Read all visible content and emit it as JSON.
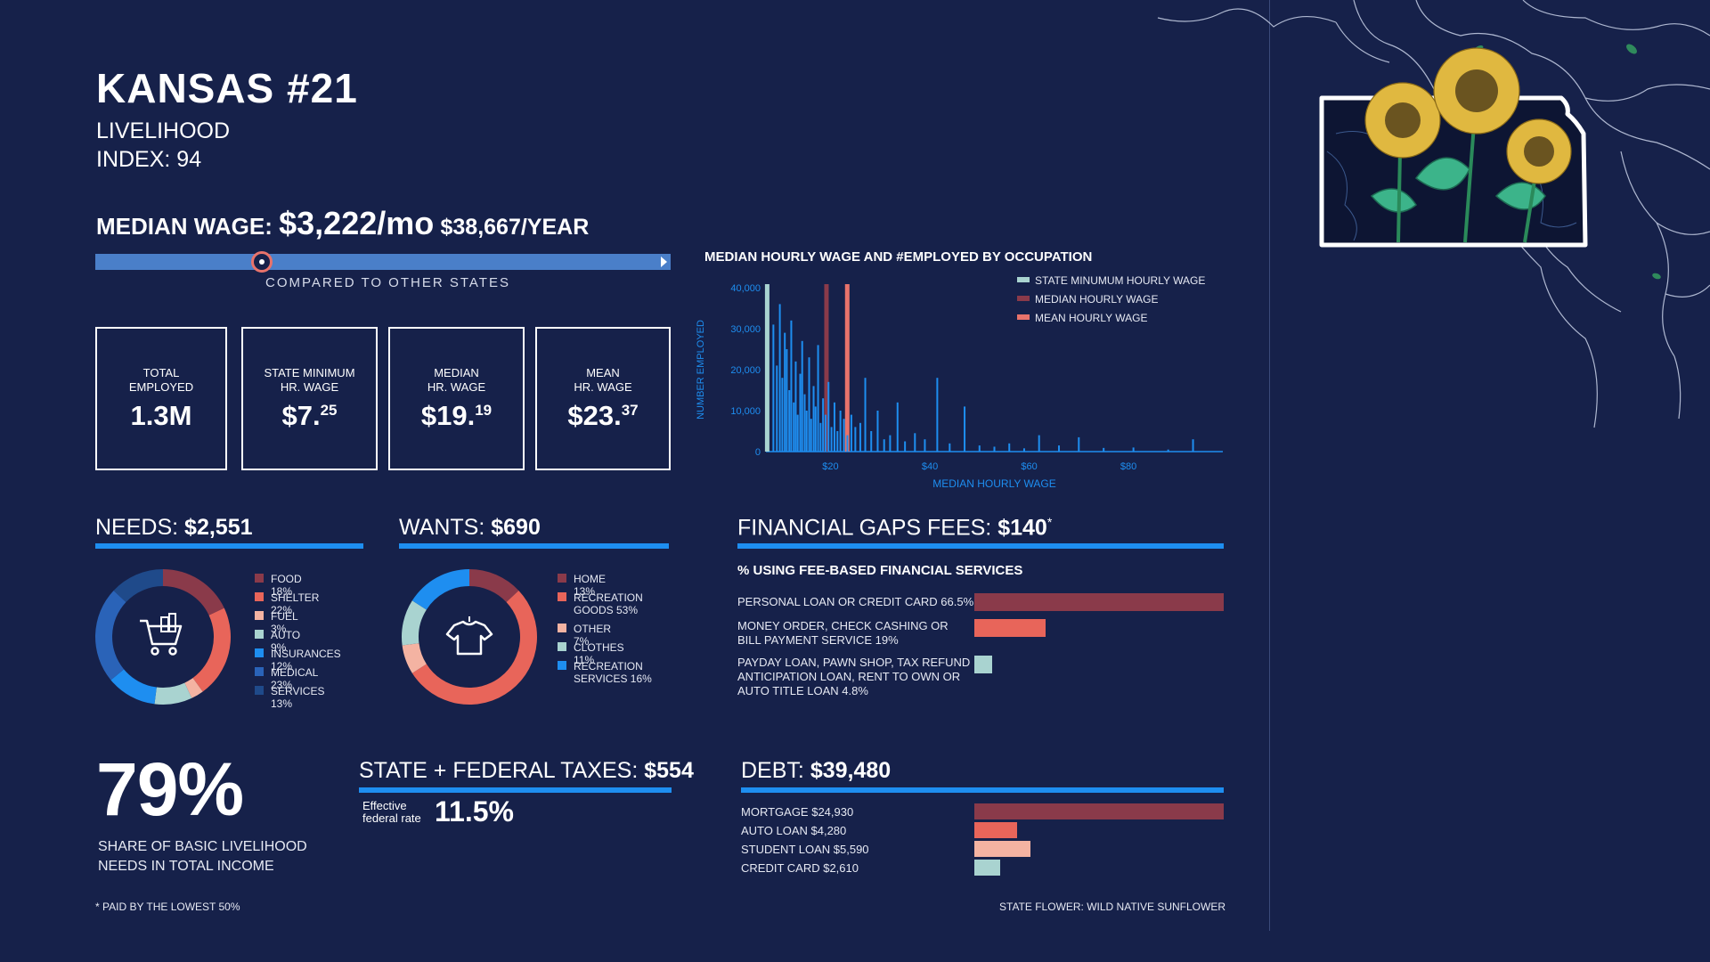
{
  "header": {
    "title": "KANSAS #21",
    "subtitle1": "LIVELIHOOD",
    "subtitle2": "INDEX: 94"
  },
  "median_wage": {
    "label": "MEDIAN WAGE:",
    "monthly": "$3,222/mo",
    "yearly": "$38,667/YEAR",
    "compare_label": "COMPARED TO OTHER STATES",
    "rank_position": 0.29
  },
  "stats": [
    {
      "label": "TOTAL\nEMPLOYED",
      "value": "1.3M",
      "sup": ""
    },
    {
      "label": "STATE MINIMUM\nHR. WAGE",
      "value": "$7.",
      "sup": "25"
    },
    {
      "label": "MEDIAN\nHR. WAGE",
      "value": "$19.",
      "sup": "19"
    },
    {
      "label": "MEAN\nHR. WAGE",
      "value": "$23.",
      "sup": "37"
    }
  ],
  "occupation_chart": {
    "title": "MEDIAN HOURLY WAGE AND #EMPLOYED BY OCCUPATION",
    "ylabel": "NUMBER EMPLOYED",
    "xlabel": "MEDIAN HOURLY WAGE",
    "yticks": [
      "0",
      "10,000",
      "20,000",
      "30,000",
      "40,000"
    ],
    "xticks": [
      "$20",
      "$40",
      "$60",
      "$80"
    ],
    "legend": [
      "STATE MINUMUM HOURLY WAGE",
      "MEDIAN HOURLY WAGE",
      "MEAN HOURLY WAGE"
    ]
  },
  "chart_data": [
    {
      "type": "bar",
      "title": "MEDIAN HOURLY WAGE AND #EMPLOYED BY OCCUPATION",
      "xlabel": "MEDIAN HOURLY WAGE",
      "ylabel": "NUMBER EMPLOYED",
      "xlim": [
        7,
        99
      ],
      "ylim": [
        0,
        40000
      ],
      "reference_lines": [
        {
          "name": "STATE MINUMUM HOURLY WAGE",
          "x": 7.25,
          "color": "#a9d3d0"
        },
        {
          "name": "MEDIAN HOURLY WAGE",
          "x": 19.19,
          "color": "#8a3a4a"
        },
        {
          "name": "MEAN HOURLY WAGE",
          "x": 23.37,
          "color": "#e8736b"
        }
      ],
      "x": [
        8.5,
        9.2,
        9.8,
        10.3,
        10.8,
        11.2,
        11.7,
        12.1,
        12.6,
        13.0,
        13.4,
        13.9,
        14.3,
        14.8,
        15.2,
        15.7,
        16.1,
        16.6,
        17.0,
        17.5,
        18.0,
        18.5,
        19.0,
        19.6,
        20.2,
        20.8,
        21.4,
        22.0,
        22.7,
        23.4,
        24.2,
        25.0,
        26.0,
        27.0,
        28.2,
        29.5,
        30.8,
        32.0,
        33.5,
        35.0,
        37.0,
        39.0,
        41.5,
        44.0,
        47.0,
        50.0,
        53.0,
        56.0,
        59.0,
        62.0,
        66.0,
        70.0,
        75.0,
        81.0,
        88.0,
        93.0
      ],
      "values": [
        31000,
        21000,
        36000,
        18000,
        29000,
        25000,
        15000,
        32000,
        12000,
        22000,
        9000,
        19000,
        27000,
        14000,
        10000,
        23000,
        8000,
        16000,
        11000,
        26000,
        7000,
        13000,
        9000,
        17000,
        6000,
        12000,
        5000,
        10000,
        8000,
        4000,
        9000,
        6000,
        7000,
        18000,
        5000,
        10000,
        3000,
        4000,
        12000,
        2500,
        4500,
        3000,
        18000,
        2000,
        11000,
        1500,
        1200,
        2000,
        800,
        4000,
        1500,
        3500,
        900,
        1000,
        500,
        3000
      ]
    },
    {
      "type": "pie",
      "title": "NEEDS: $2,551",
      "labels": [
        "FOOD",
        "SHELTER",
        "FUEL",
        "AUTO",
        "INSURANCES",
        "MEDICAL",
        "SERVICES"
      ],
      "values": [
        18,
        22,
        3,
        9,
        12,
        23,
        13
      ],
      "colors": [
        "#8a3a4a",
        "#e8655a",
        "#f4b3a2",
        "#a9d3d0",
        "#1e8ef0",
        "#2a63b8",
        "#1f4a8a"
      ]
    },
    {
      "type": "pie",
      "title": "WANTS: $690",
      "labels": [
        "HOME",
        "RECREATION GOODS",
        "OTHER",
        "CLOTHES",
        "RECREATION SERVICES"
      ],
      "values": [
        13,
        53,
        7,
        11,
        16
      ],
      "colors": [
        "#8a3a4a",
        "#e8655a",
        "#f4b3a2",
        "#a9d3d0",
        "#1e8ef0"
      ]
    },
    {
      "type": "bar",
      "title": "% USING FEE-BASED FINANCIAL SERVICES",
      "categories": [
        "PERSONAL LOAN OR CREDIT CARD",
        "MONEY ORDER, CHECK CASHING OR BILL PAYMENT SERVICE",
        "PAYDAY LOAN, PAWN SHOP, TAX REFUND ANTICIPATION LOAN, RENT TO OWN OR AUTO TITLE LOAN"
      ],
      "values": [
        66.5,
        19,
        4.8
      ]
    },
    {
      "type": "bar",
      "title": "DEBT: $39,480",
      "categories": [
        "MORTGAGE",
        "AUTO LOAN",
        "STUDENT LOAN",
        "CREDIT CARD"
      ],
      "values": [
        24930,
        4280,
        5590,
        2610
      ]
    }
  ],
  "needs": {
    "head_label": "NEEDS:",
    "head_value": "$2,551",
    "legend": [
      "FOOD 18%",
      "SHELTER 22%",
      "FUEL 3%",
      "AUTO 9%",
      "INSURANCES 12%",
      "MEDICAL 23%",
      "SERVICES 13%"
    ]
  },
  "wants": {
    "head_label": "WANTS:",
    "head_value": "$690",
    "legend": [
      "HOME 13%",
      "RECREATION\nGOODS 53%",
      "OTHER 7%",
      "CLOTHES 11%",
      "RECREATION\nSERVICES 16%"
    ]
  },
  "gaps": {
    "head_label": "FINANCIAL GAPS FEES:",
    "head_value": "$140",
    "head_mark": "*",
    "subtitle": "% USING FEE-BASED FINANCIAL SERVICES",
    "labels": [
      "PERSONAL LOAN OR CREDIT CARD 66.5%",
      "MONEY ORDER, CHECK CASHING OR\nBILL PAYMENT SERVICE 19%",
      "PAYDAY LOAN, PAWN SHOP, TAX REFUND\nANTICIPATION LOAN, RENT TO OWN OR\nAUTO TITLE LOAN 4.8%"
    ],
    "colors": [
      "#8a3a4a",
      "#e8655a",
      "#a9d3d0"
    ]
  },
  "share": {
    "percent": "79%",
    "caption": "SHARE OF BASIC LIVELIHOOD\nNEEDS IN TOTAL INCOME"
  },
  "taxes": {
    "head_label": "STATE + FEDERAL TAXES:",
    "head_value": "$554",
    "rate_label": "Effective\nfederal rate",
    "rate_value": "11.5%"
  },
  "debt": {
    "head_label": "DEBT:",
    "head_value": "$39,480",
    "labels": [
      "MORTGAGE $24,930",
      "AUTO LOAN $4,280",
      "STUDENT LOAN $5,590",
      "CREDIT CARD $2,610"
    ],
    "colors": [
      "#8a3a4a",
      "#e8655a",
      "#f4b3a2",
      "#a9d3d0"
    ]
  },
  "footnote": "* PAID BY THE LOWEST 50%",
  "state_flower": "STATE FLOWER: WILD NATIVE SUNFLOWER",
  "colors": {
    "background": "#16214a",
    "accent_blue": "#1e8ef0",
    "bar_blue": "#4a7fc9"
  }
}
